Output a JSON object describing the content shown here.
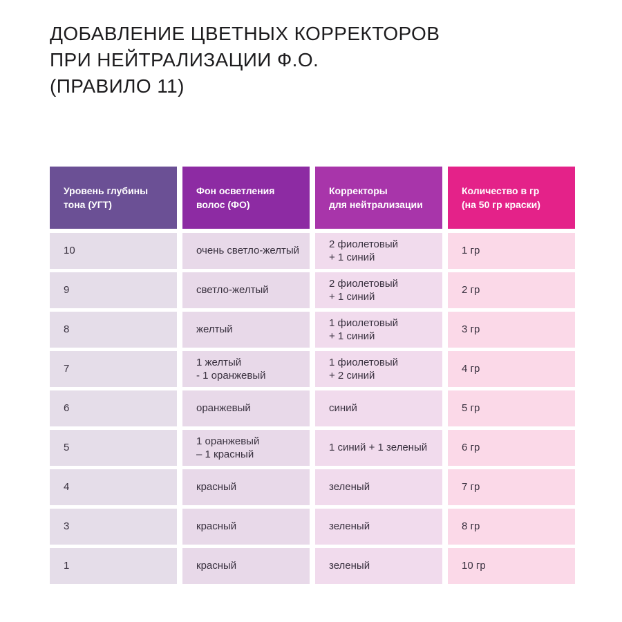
{
  "title": {
    "text": "ДОБАВЛЕНИЕ ЦВЕТНЫХ КОРРЕКТОРОВ\nПРИ НЕЙТРАЛИЗАЦИИ Ф.О.\n(ПРАВИЛО 11)"
  },
  "table": {
    "columns": [
      {
        "label": "Уровень глубины\nтона (УГТ)",
        "header_bg": "#6b5095",
        "cell_bg": "#e5dde9"
      },
      {
        "label": "Фон осветления\nволос (ФО)",
        "header_bg": "#8d2ba3",
        "cell_bg": "#e8d9e9"
      },
      {
        "label": "Корректоры\nдля нейтрализации",
        "header_bg": "#a835aa",
        "cell_bg": "#f1dbed"
      },
      {
        "label": "Количество в гр\n(на 50 гр краски)",
        "header_bg": "#e42289",
        "cell_bg": "#fbd9e8"
      }
    ],
    "rows": [
      {
        "level": "10",
        "background": "очень светло-желтый",
        "correctors": "2 фиолетовый\n+ 1 синий",
        "amount": "1 гр"
      },
      {
        "level": "9",
        "background": "светло-желтый",
        "correctors": "2 фиолетовый\n+ 1 синий",
        "amount": "2 гр"
      },
      {
        "level": "8",
        "background": "желтый",
        "correctors": "1 фиолетовый\n+ 1 синий",
        "amount": "3 гр"
      },
      {
        "level": "7",
        "background": "1 желтый\n- 1 оранжевый",
        "correctors": "1 фиолетовый\n+ 2 синий",
        "amount": "4 гр"
      },
      {
        "level": "6",
        "background": "оранжевый",
        "correctors": "синий",
        "amount": "5 гр"
      },
      {
        "level": "5",
        "background": "1 оранжевый\n– 1 красный",
        "correctors": "1 синий + 1 зеленый",
        "amount": "6 гр"
      },
      {
        "level": "4",
        "background": "красный",
        "correctors": "зеленый",
        "amount": "7 гр"
      },
      {
        "level": "3",
        "background": "красный",
        "correctors": "зеленый",
        "amount": "8 гр"
      },
      {
        "level": "1",
        "background": "красный",
        "correctors": "зеленый",
        "amount": "10 гр"
      }
    ]
  }
}
